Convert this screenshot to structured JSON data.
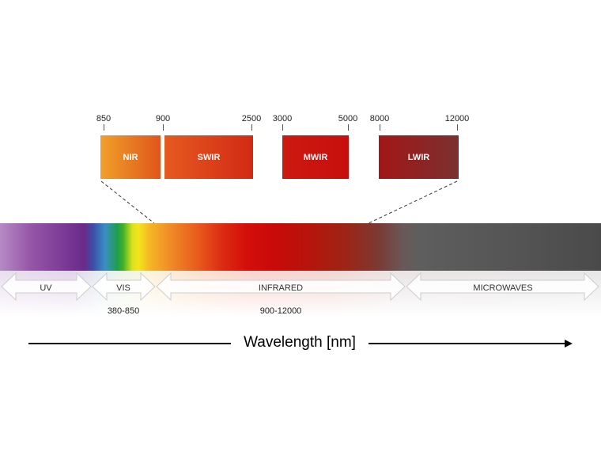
{
  "ticks": {
    "t850": "850",
    "t900": "900",
    "t2500": "2500",
    "t3000": "3000",
    "t5000": "5000",
    "t8000": "8000",
    "t12000": "12000"
  },
  "bands": [
    {
      "label": "NIR",
      "range": [
        850,
        900
      ],
      "color_from": "#f0a02a",
      "color_to": "#e0561c"
    },
    {
      "label": "SWIR",
      "range": [
        900,
        2500
      ],
      "color_from": "#e55a20",
      "color_to": "#d22a14"
    },
    {
      "label": "MWIR",
      "range": [
        3000,
        5000
      ],
      "color_from": "#cc1a10",
      "color_to": "#c80e0c"
    },
    {
      "label": "LWIR",
      "range": [
        8000,
        12000
      ],
      "color_from": "#a31616",
      "color_to": "#7a3030"
    }
  ],
  "regions": {
    "uv": "UV",
    "vis": "VIS",
    "infrared": "INFRARED",
    "microwaves": "MICROWAVES"
  },
  "ranges": {
    "vis": "380-850",
    "infrared": "900-12000"
  },
  "axis_title": "Wavelength [nm]"
}
